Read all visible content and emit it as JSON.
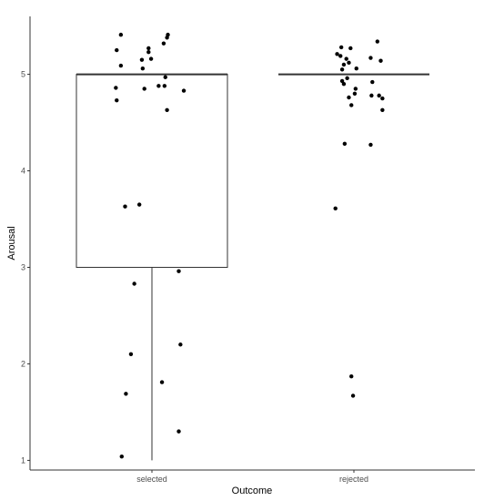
{
  "chart_data": {
    "type": "boxplot_with_jitter",
    "xlabel": "Outcome",
    "ylabel": "Arousal",
    "categories": [
      "selected",
      "rejected"
    ],
    "ylim": [
      0.9,
      5.6
    ],
    "yticks": [
      1,
      2,
      3,
      4,
      5
    ],
    "grid": false,
    "boxes": [
      {
        "category": "selected",
        "whisker_low": 1,
        "q1": 3,
        "median": 5,
        "q3": 5,
        "whisker_high": 5
      },
      {
        "category": "rejected",
        "whisker_low": 5,
        "q1": 5,
        "median": 5,
        "q3": 5,
        "whisker_high": 5
      }
    ],
    "points": [
      {
        "category": "selected",
        "x_jitter": -0.37,
        "y": 5.41
      },
      {
        "category": "selected",
        "x_jitter": -0.42,
        "y": 5.25
      },
      {
        "category": "selected",
        "x_jitter": -0.37,
        "y": 5.09
      },
      {
        "category": "selected",
        "x_jitter": -0.43,
        "y": 4.86
      },
      {
        "category": "selected",
        "x_jitter": -0.42,
        "y": 4.73
      },
      {
        "category": "selected",
        "x_jitter": -0.01,
        "y": 5.16
      },
      {
        "category": "selected",
        "x_jitter": -0.04,
        "y": 5.23
      },
      {
        "category": "selected",
        "x_jitter": -0.04,
        "y": 5.27
      },
      {
        "category": "selected",
        "x_jitter": -0.12,
        "y": 5.15
      },
      {
        "category": "selected",
        "x_jitter": -0.11,
        "y": 5.06
      },
      {
        "category": "selected",
        "x_jitter": 0.14,
        "y": 5.32
      },
      {
        "category": "selected",
        "x_jitter": 0.18,
        "y": 5.38
      },
      {
        "category": "selected",
        "x_jitter": 0.19,
        "y": 5.41
      },
      {
        "category": "selected",
        "x_jitter": 0.16,
        "y": 4.97
      },
      {
        "category": "selected",
        "x_jitter": 0.08,
        "y": 4.88
      },
      {
        "category": "selected",
        "x_jitter": 0.15,
        "y": 4.88
      },
      {
        "category": "selected",
        "x_jitter": -0.09,
        "y": 4.85
      },
      {
        "category": "selected",
        "x_jitter": 0.38,
        "y": 4.83
      },
      {
        "category": "selected",
        "x_jitter": 0.18,
        "y": 4.63
      },
      {
        "category": "selected",
        "x_jitter": -0.32,
        "y": 3.63
      },
      {
        "category": "selected",
        "x_jitter": -0.15,
        "y": 3.65
      },
      {
        "category": "selected",
        "x_jitter": 0.32,
        "y": 2.96
      },
      {
        "category": "selected",
        "x_jitter": -0.21,
        "y": 2.83
      },
      {
        "category": "selected",
        "x_jitter": 0.34,
        "y": 2.2
      },
      {
        "category": "selected",
        "x_jitter": -0.25,
        "y": 2.1
      },
      {
        "category": "selected",
        "x_jitter": 0.12,
        "y": 1.81
      },
      {
        "category": "selected",
        "x_jitter": -0.31,
        "y": 1.69
      },
      {
        "category": "selected",
        "x_jitter": 0.32,
        "y": 1.3
      },
      {
        "category": "selected",
        "x_jitter": -0.36,
        "y": 1.04
      },
      {
        "category": "rejected",
        "x_jitter": -0.15,
        "y": 5.28
      },
      {
        "category": "rejected",
        "x_jitter": -0.04,
        "y": 5.27
      },
      {
        "category": "rejected",
        "x_jitter": 0.28,
        "y": 5.34
      },
      {
        "category": "rejected",
        "x_jitter": -0.2,
        "y": 5.21
      },
      {
        "category": "rejected",
        "x_jitter": -0.16,
        "y": 5.19
      },
      {
        "category": "rejected",
        "x_jitter": -0.09,
        "y": 5.16
      },
      {
        "category": "rejected",
        "x_jitter": -0.06,
        "y": 5.12
      },
      {
        "category": "rejected",
        "x_jitter": -0.12,
        "y": 5.1
      },
      {
        "category": "rejected",
        "x_jitter": 0.2,
        "y": 5.17
      },
      {
        "category": "rejected",
        "x_jitter": 0.32,
        "y": 5.14
      },
      {
        "category": "rejected",
        "x_jitter": -0.14,
        "y": 5.05
      },
      {
        "category": "rejected",
        "x_jitter": 0.03,
        "y": 5.06
      },
      {
        "category": "rejected",
        "x_jitter": -0.08,
        "y": 4.96
      },
      {
        "category": "rejected",
        "x_jitter": -0.14,
        "y": 4.93
      },
      {
        "category": "rejected",
        "x_jitter": -0.12,
        "y": 4.9
      },
      {
        "category": "rejected",
        "x_jitter": 0.22,
        "y": 4.92
      },
      {
        "category": "rejected",
        "x_jitter": 0.02,
        "y": 4.85
      },
      {
        "category": "rejected",
        "x_jitter": 0.01,
        "y": 4.8
      },
      {
        "category": "rejected",
        "x_jitter": -0.06,
        "y": 4.76
      },
      {
        "category": "rejected",
        "x_jitter": 0.21,
        "y": 4.78
      },
      {
        "category": "rejected",
        "x_jitter": 0.3,
        "y": 4.78
      },
      {
        "category": "rejected",
        "x_jitter": 0.34,
        "y": 4.75
      },
      {
        "category": "rejected",
        "x_jitter": -0.03,
        "y": 4.68
      },
      {
        "category": "rejected",
        "x_jitter": 0.34,
        "y": 4.63
      },
      {
        "category": "rejected",
        "x_jitter": -0.11,
        "y": 4.28
      },
      {
        "category": "rejected",
        "x_jitter": 0.2,
        "y": 4.27
      },
      {
        "category": "rejected",
        "x_jitter": -0.22,
        "y": 3.61
      },
      {
        "category": "rejected",
        "x_jitter": -0.03,
        "y": 1.87
      },
      {
        "category": "rejected",
        "x_jitter": -0.01,
        "y": 1.67
      }
    ],
    "colors": {
      "background": "#ffffff",
      "axis": "#333333",
      "box": "#333333",
      "point": "#000000",
      "tick_label": "#4d4d4d"
    }
  }
}
